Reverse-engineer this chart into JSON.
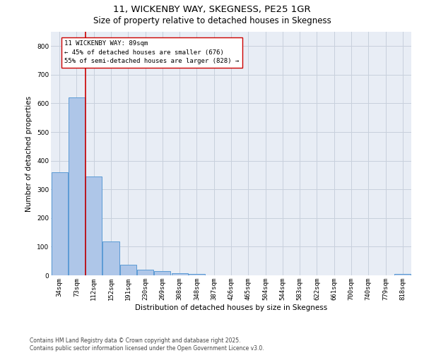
{
  "title_line1": "11, WICKENBY WAY, SKEGNESS, PE25 1GR",
  "title_line2": "Size of property relative to detached houses in Skegness",
  "xlabel": "Distribution of detached houses by size in Skegness",
  "ylabel": "Number of detached properties",
  "categories": [
    "34sqm",
    "73sqm",
    "112sqm",
    "152sqm",
    "191sqm",
    "230sqm",
    "269sqm",
    "308sqm",
    "348sqm",
    "387sqm",
    "426sqm",
    "465sqm",
    "504sqm",
    "544sqm",
    "583sqm",
    "622sqm",
    "661sqm",
    "700sqm",
    "740sqm",
    "779sqm",
    "818sqm"
  ],
  "values": [
    360,
    620,
    345,
    118,
    38,
    20,
    15,
    8,
    5,
    0,
    0,
    0,
    0,
    0,
    0,
    0,
    0,
    0,
    0,
    0,
    5
  ],
  "bar_color": "#aec6e8",
  "bar_edge_color": "#5b9bd5",
  "vline_x": 1.5,
  "vline_color": "#cc0000",
  "annotation_text": "11 WICKENBY WAY: 89sqm\n← 45% of detached houses are smaller (676)\n55% of semi-detached houses are larger (828) →",
  "box_facecolor": "white",
  "box_edgecolor": "#cc0000",
  "ylim": [
    0,
    850
  ],
  "yticks": [
    0,
    100,
    200,
    300,
    400,
    500,
    600,
    700,
    800
  ],
  "grid_color": "#c8d0dc",
  "bg_color": "#e8edf5",
  "footnote": "Contains HM Land Registry data © Crown copyright and database right 2025.\nContains public sector information licensed under the Open Government Licence v3.0.",
  "title_fontsize": 9.5,
  "subtitle_fontsize": 8.5,
  "label_fontsize": 7.5,
  "tick_fontsize": 6.5,
  "annot_fontsize": 6.5,
  "footnote_fontsize": 5.5
}
